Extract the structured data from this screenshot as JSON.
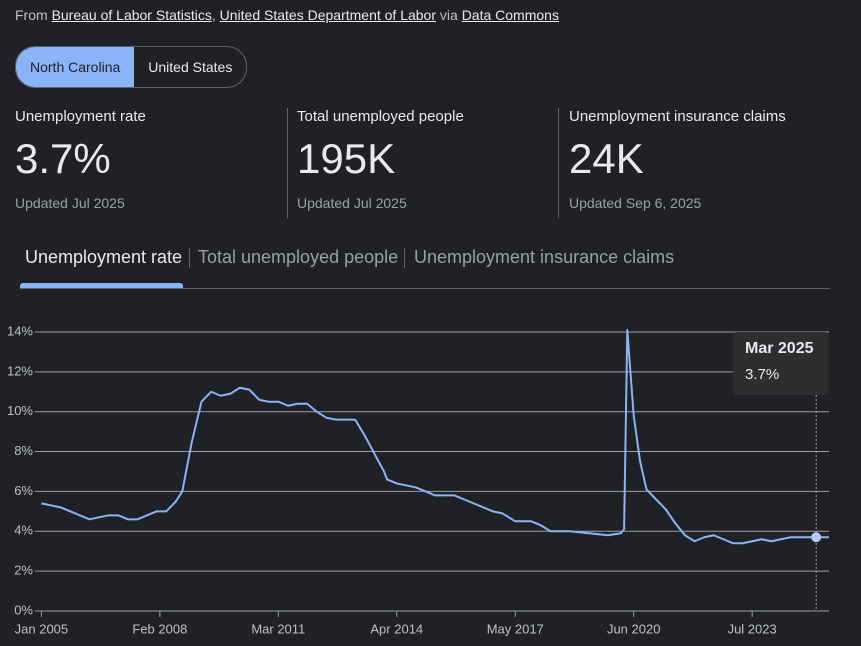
{
  "source": {
    "prefix": "From",
    "links": [
      "Bureau of Labor Statistics",
      "United States Department of Labor",
      "Data Commons"
    ],
    "separator": ",",
    "via": "via"
  },
  "toggle": {
    "options": [
      "North Carolina",
      "United States"
    ],
    "selected": 0
  },
  "stats": [
    {
      "label": "Unemployment rate",
      "value": "3.7%",
      "updated": "Updated Jul 2025"
    },
    {
      "label": "Total unemployed people",
      "value": "195K",
      "updated": "Updated Jul 2025"
    },
    {
      "label": "Unemployment insurance claims",
      "value": "24K",
      "updated": "Updated Sep 6, 2025"
    }
  ],
  "tabs": {
    "items": [
      "Unemployment rate",
      "Total unemployed people",
      "Unemployment insurance claims"
    ],
    "selected": 0
  },
  "chart_data": {
    "type": "line",
    "color": "#8ab4f8",
    "grid": true,
    "x": [
      "2005-01",
      "2005-04",
      "2005-07",
      "2005-10",
      "2006-01",
      "2006-04",
      "2006-07",
      "2006-10",
      "2007-01",
      "2007-04",
      "2007-07",
      "2007-10",
      "2008-01",
      "2008-04",
      "2008-07",
      "2008-09",
      "2008-12",
      "2009-03",
      "2009-06",
      "2009-09",
      "2009-12",
      "2010-03",
      "2010-06",
      "2010-09",
      "2010-12",
      "2011-03",
      "2011-06",
      "2011-09",
      "2011-12",
      "2012-03",
      "2012-06",
      "2012-09",
      "2012-12",
      "2013-03",
      "2013-06",
      "2013-09",
      "2013-12",
      "2014-01",
      "2014-04",
      "2014-07",
      "2014-10",
      "2015-01",
      "2015-04",
      "2015-07",
      "2015-10",
      "2016-01",
      "2016-04",
      "2016-07",
      "2016-10",
      "2017-01",
      "2017-05",
      "2017-10",
      "2018-01",
      "2018-04",
      "2018-10",
      "2019-04",
      "2019-10",
      "2020-02",
      "2020-03",
      "2020-04",
      "2020-06",
      "2020-08",
      "2020-10",
      "2021-01",
      "2021-04",
      "2021-07",
      "2021-10",
      "2022-01",
      "2022-04",
      "2022-07",
      "2022-10",
      "2023-01",
      "2023-04",
      "2023-07",
      "2023-10",
      "2024-01",
      "2024-04",
      "2024-07",
      "2024-10",
      "2025-03",
      "2025-07"
    ],
    "values": [
      5.4,
      5.3,
      5.2,
      5.0,
      4.8,
      4.6,
      4.7,
      4.8,
      4.8,
      4.6,
      4.6,
      4.8,
      5.0,
      5.0,
      5.5,
      6.0,
      8.5,
      10.5,
      11.0,
      10.8,
      10.9,
      11.2,
      11.1,
      10.6,
      10.5,
      10.5,
      10.3,
      10.4,
      10.4,
      10.0,
      9.7,
      9.6,
      9.6,
      9.6,
      8.8,
      7.9,
      7.0,
      6.6,
      6.4,
      6.3,
      6.2,
      6.0,
      5.8,
      5.8,
      5.8,
      5.6,
      5.4,
      5.2,
      5.0,
      4.9,
      4.5,
      4.5,
      4.3,
      4.0,
      4.0,
      3.9,
      3.8,
      3.9,
      4.1,
      14.1,
      9.8,
      7.5,
      6.1,
      5.6,
      5.1,
      4.4,
      3.8,
      3.5,
      3.7,
      3.8,
      3.6,
      3.4,
      3.4,
      3.5,
      3.6,
      3.5,
      3.6,
      3.7,
      3.7,
      3.7,
      3.7
    ],
    "xlim": [
      "2004-11",
      "2025-07"
    ],
    "xticks": [
      {
        "value": "2005-01",
        "label": "Jan 2005"
      },
      {
        "value": "2008-02",
        "label": "Feb 2008"
      },
      {
        "value": "2011-03",
        "label": "Mar 2011"
      },
      {
        "value": "2014-04",
        "label": "Apr 2014"
      },
      {
        "value": "2017-05",
        "label": "May 2017"
      },
      {
        "value": "2020-06",
        "label": "Jun 2020"
      },
      {
        "value": "2023-07",
        "label": "Jul 2023"
      }
    ],
    "ylim": [
      0,
      14.5
    ],
    "yticks": [
      {
        "value": 0,
        "label": "0%"
      },
      {
        "value": 2,
        "label": "2%"
      },
      {
        "value": 4,
        "label": "4%"
      },
      {
        "value": 6,
        "label": "6%"
      },
      {
        "value": 8,
        "label": "8%"
      },
      {
        "value": 10,
        "label": "10%"
      },
      {
        "value": 12,
        "label": "12%"
      },
      {
        "value": 14,
        "label": "14%"
      }
    ],
    "tooltip": {
      "x": "2025-03",
      "label": "Mar 2025",
      "value": 3.7,
      "value_label": "3.7%"
    }
  }
}
